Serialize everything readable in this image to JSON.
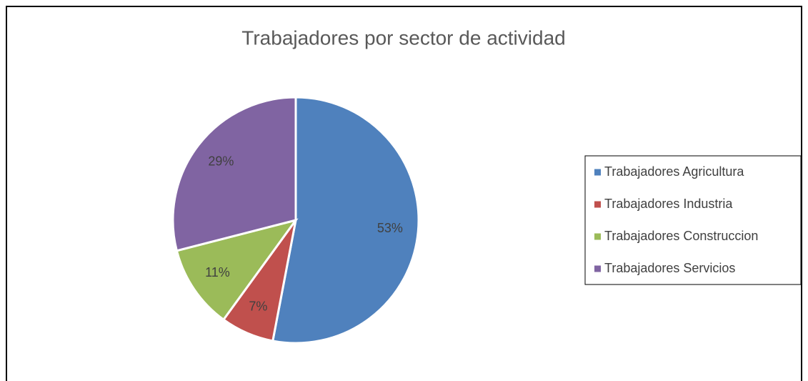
{
  "chart_data": {
    "type": "pie",
    "title": "Trabajadores por sector de actividad",
    "categories": [
      "Trabajadores Agricultura",
      "Trabajadores Industria",
      "Trabajadores Construccion",
      "Trabajadores Servicios"
    ],
    "values": [
      53,
      7,
      11,
      29
    ],
    "value_labels": [
      "53%",
      "7%",
      "11%",
      "29%"
    ],
    "colors": [
      "#4f81bd",
      "#c0504d",
      "#9bbb59",
      "#8064a2"
    ],
    "legend": "right"
  }
}
